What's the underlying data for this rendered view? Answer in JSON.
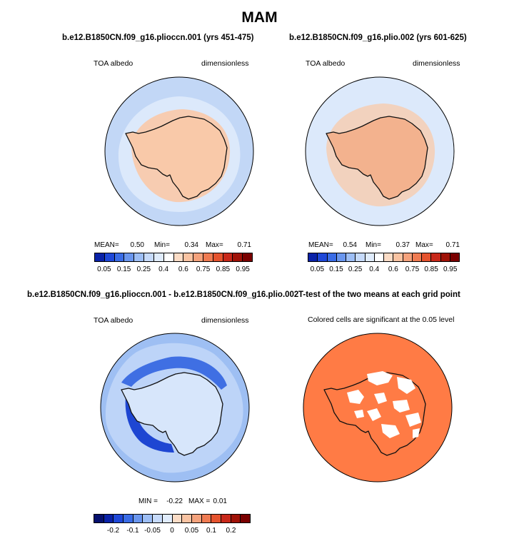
{
  "title": "MAM",
  "panels": {
    "p1": {
      "title": "b.e12.B1850CN.f09_g16.plioccn.001 (yrs 451-475)",
      "left_label": "TOA albedo",
      "right_label": "dimensionless",
      "stats": {
        "mean_label": "MEAN=",
        "mean": "0.50",
        "min_label": "Min=",
        "min": "0.34",
        "max_label": "Max=",
        "max": "0.71"
      }
    },
    "p2": {
      "title": "b.e12.B1850CN.f09_g16.plio.002 (yrs 601-625)",
      "left_label": "TOA albedo",
      "right_label": "dimensionless",
      "stats": {
        "mean_label": "MEAN=",
        "mean": "0.54",
        "min_label": "Min=",
        "min": "0.37",
        "max_label": "Max=",
        "max": "0.71"
      }
    },
    "p3": {
      "title": "b.e12.B1850CN.f09_g16.plioccn.001 - b.e12.B1850CN.f09_g16.plio.002",
      "left_label": "TOA albedo",
      "right_label": "dimensionless",
      "stats": {
        "min_label": "MIN =",
        "min": "-0.22",
        "max_label": "MAX =",
        "max": "0.01"
      }
    },
    "p4": {
      "title": "T-test of the two means at each grid point",
      "subtitle": "Colored cells are significant at the 0.05 level"
    }
  },
  "colorbars": {
    "abs": {
      "labels": [
        "0.05",
        "0.15",
        "0.25",
        "0.4",
        "0.6",
        "0.75",
        "0.85",
        "0.95"
      ],
      "colors": [
        "#0a22a8",
        "#1f48d8",
        "#3a6ce6",
        "#6a96ee",
        "#9dbef5",
        "#c6dafa",
        "#e0ecfc",
        "#ffffff",
        "#fbdcc6",
        "#f9c3a2",
        "#f4a27c",
        "#ef7b52",
        "#e5532e",
        "#c8281a",
        "#a01208",
        "#7a0000"
      ]
    },
    "diff": {
      "labels": [
        "-0.2",
        "-0.1",
        "-0.05",
        "0",
        "0.05",
        "0.1",
        "0.2"
      ],
      "colors": [
        "#06106e",
        "#0a22a8",
        "#1f48d8",
        "#3a6ce6",
        "#6a96ee",
        "#9dbef5",
        "#c6dafa",
        "#e0ecfc",
        "#fbdcc6",
        "#f9c3a2",
        "#f4a27c",
        "#ef7b52",
        "#e5532e",
        "#c8281a",
        "#a01208",
        "#7a0000"
      ]
    }
  },
  "chart_data": [
    {
      "type": "heatmap",
      "projection": "south-polar stereographic",
      "variable": "TOA albedo",
      "units": "dimensionless",
      "title": "b.e12.B1850CN.f09_g16.plioccn.001 (yrs 451-475)",
      "mean": 0.5,
      "min": 0.34,
      "max": 0.71,
      "levels": [
        0.05,
        0.1,
        0.15,
        0.2,
        0.25,
        0.3,
        0.4,
        0.5,
        0.6,
        0.65,
        0.75,
        0.8,
        0.85,
        0.9,
        0.95
      ]
    },
    {
      "type": "heatmap",
      "projection": "south-polar stereographic",
      "variable": "TOA albedo",
      "units": "dimensionless",
      "title": "b.e12.B1850CN.f09_g16.plio.002 (yrs 601-625)",
      "mean": 0.54,
      "min": 0.37,
      "max": 0.71,
      "levels": [
        0.05,
        0.1,
        0.15,
        0.2,
        0.25,
        0.3,
        0.4,
        0.5,
        0.6,
        0.65,
        0.75,
        0.8,
        0.85,
        0.9,
        0.95
      ]
    },
    {
      "type": "heatmap",
      "projection": "south-polar stereographic",
      "variable": "TOA albedo difference",
      "units": "dimensionless",
      "title": "b.e12.B1850CN.f09_g16.plioccn.001 - b.e12.B1850CN.f09_g16.plio.002",
      "min": -0.22,
      "max": 0.01,
      "levels": [
        -0.2,
        -0.15,
        -0.1,
        -0.08,
        -0.05,
        -0.03,
        -0.01,
        0,
        0.01,
        0.03,
        0.05,
        0.08,
        0.1,
        0.15,
        0.2
      ]
    },
    {
      "type": "heatmap",
      "projection": "south-polar stereographic",
      "title": "T-test of the two means at each grid point",
      "note": "Colored cells are significant at the 0.05 level",
      "significance_level": 0.05
    }
  ],
  "map_colors": {
    "ocean_light": "#dce9fb",
    "ocean_mid": "#c2d7f6",
    "land_albedo": "#f9c9a9",
    "land_albedo_dark": "#f3b28e",
    "diff_light": "#d7e6fb",
    "diff_mid": "#9ebff3",
    "diff_strong": "#3f6fe3",
    "diff_deep": "#1e46d2",
    "significant": "#ff7b45",
    "coast": "#111111"
  }
}
